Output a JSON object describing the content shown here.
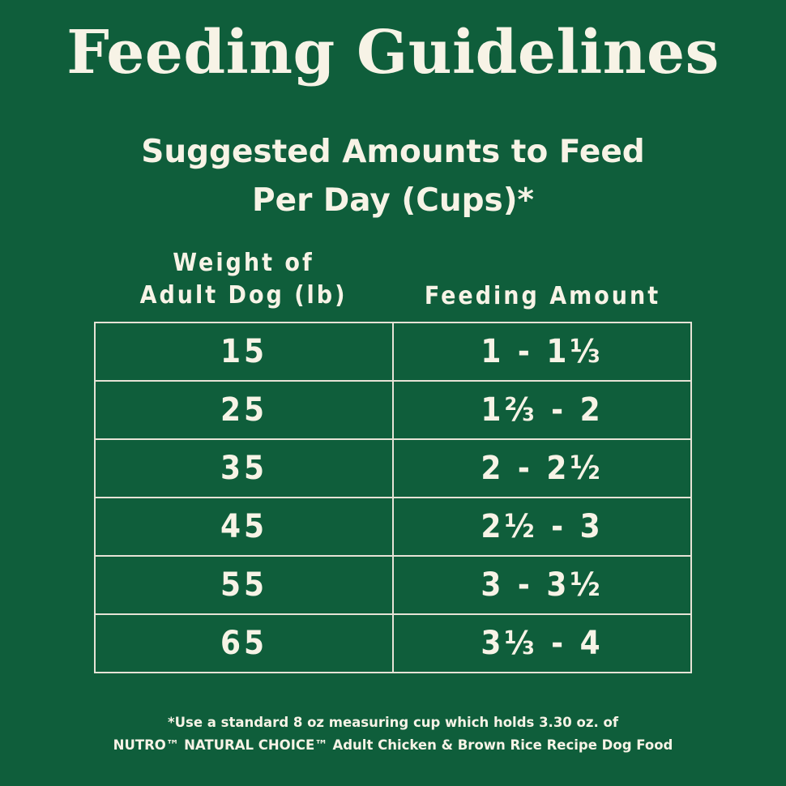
{
  "title": "Feeding Guidelines",
  "subtitle": {
    "line1": "Suggested Amounts to Feed",
    "line2": "Per Day (Cups)*"
  },
  "table": {
    "header_weight_line1": "Weight of",
    "header_weight_line2": "Adult Dog (lb)",
    "header_amount": "Feeding Amount",
    "rows": [
      {
        "weight": "15",
        "amount": "1 - 1⅓"
      },
      {
        "weight": "25",
        "amount": "1⅔ - 2"
      },
      {
        "weight": "35",
        "amount": "2 - 2½"
      },
      {
        "weight": "45",
        "amount": "2½ - 3"
      },
      {
        "weight": "55",
        "amount": "3 - 3½"
      },
      {
        "weight": "65",
        "amount": "3⅓ - 4"
      }
    ]
  },
  "footnote": {
    "line1": "*Use a standard 8 oz measuring cup which holds 3.30 oz. of",
    "line2": "NUTRO™ NATURAL CHOICE™ Adult Chicken & Brown Rice Recipe Dog Food"
  },
  "colors": {
    "background": "#0f5e3b",
    "text": "#f7f3e6",
    "table_border": "#e6e3d6"
  }
}
